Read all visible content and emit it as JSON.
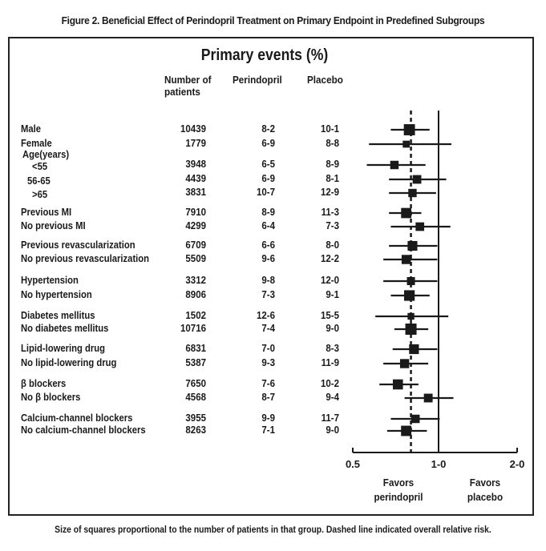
{
  "figure_title": "Figure 2. Beneficial Effect of Perindopril Treatment on Primary Endpoint in Predefined Subgroups",
  "footnote": "Size of squares proportional to the number of patients in that group. Dashed line indicated overall relative risk.",
  "chart_data": {
    "type": "forest",
    "title": "Primary events (%)",
    "columns": {
      "n": "Number of patients",
      "n_line1": "Number of",
      "n_line2": "patients",
      "perindopril": "Perindopril",
      "placebo": "Placebo"
    },
    "x_scale": "log",
    "xlim": [
      0.5,
      2.0
    ],
    "x_ticks": [
      0.5,
      1.0,
      2.0
    ],
    "x_tick_labels": [
      "0.5",
      "1-0",
      "2-0"
    ],
    "reference_line": 1.0,
    "overall_relative_risk": 0.8,
    "favors_left": [
      "Favors",
      "perindopril"
    ],
    "favors_right": [
      "Favors",
      "placebo"
    ],
    "rows": [
      {
        "label": "Male",
        "n": "10439",
        "perindopril": "8-2",
        "placebo": "10-1",
        "rr": 0.79,
        "lo": 0.68,
        "hi": 0.93
      },
      {
        "label": "Female",
        "n": "1779",
        "perindopril": "6-9",
        "placebo": "8-8",
        "rr": 0.77,
        "lo": 0.57,
        "hi": 1.12
      },
      {
        "label": "Age(years)",
        "header": true
      },
      {
        "label": "<55",
        "indent": true,
        "n": "3948",
        "perindopril": "6-5",
        "placebo": "8-9",
        "rr": 0.7,
        "lo": 0.56,
        "hi": 0.9
      },
      {
        "label": "56-65",
        "indent": true,
        "n": "4439",
        "perindopril": "6-9",
        "placebo": "8-1",
        "rr": 0.84,
        "lo": 0.67,
        "hi": 1.07
      },
      {
        "label": ">65",
        "indent": true,
        "n": "3831",
        "perindopril": "10-7",
        "placebo": "12-9",
        "rr": 0.81,
        "lo": 0.67,
        "hi": 0.98
      },
      {
        "label": "Previous MI",
        "n": "7910",
        "perindopril": "8-9",
        "placebo": "11-3",
        "rr": 0.77,
        "lo": 0.67,
        "hi": 0.87
      },
      {
        "label": "No previous MI",
        "n": "4299",
        "perindopril": "6-4",
        "placebo": "7-3",
        "rr": 0.86,
        "lo": 0.68,
        "hi": 1.11
      },
      {
        "label": "Previous revascularization",
        "n": "6709",
        "perindopril": "6-6",
        "placebo": "8-0",
        "rr": 0.81,
        "lo": 0.67,
        "hi": 0.99
      },
      {
        "label": "No previous revascularization",
        "n": "5509",
        "perindopril": "9-6",
        "placebo": "12-2",
        "rr": 0.77,
        "lo": 0.64,
        "hi": 0.99
      },
      {
        "label": "Hypertension",
        "n": "3312",
        "perindopril": "9-8",
        "placebo": "12-0",
        "rr": 0.8,
        "lo": 0.64,
        "hi": 0.99
      },
      {
        "label": "No hypertension",
        "n": "8906",
        "perindopril": "7-3",
        "placebo": "9-1",
        "rr": 0.79,
        "lo": 0.68,
        "hi": 0.93
      },
      {
        "label": "Diabetes mellitus",
        "n": "1502",
        "perindopril": "12-6",
        "placebo": "15-5",
        "rr": 0.8,
        "lo": 0.6,
        "hi": 1.09
      },
      {
        "label": "No diabetes mellitus",
        "n": "10716",
        "perindopril": "7-4",
        "placebo": "9-0",
        "rr": 0.8,
        "lo": 0.7,
        "hi": 0.92
      },
      {
        "label": "Lipid-lowering drug",
        "n": "6831",
        "perindopril": "7-0",
        "placebo": "8-3",
        "rr": 0.82,
        "lo": 0.69,
        "hi": 0.99
      },
      {
        "label": "No lipid-lowering drug",
        "n": "5387",
        "perindopril": "9-3",
        "placebo": "11-9",
        "rr": 0.76,
        "lo": 0.64,
        "hi": 0.92
      },
      {
        "label": "β   blockers",
        "n": "7650",
        "perindopril": "7-6",
        "placebo": "10-2",
        "rr": 0.72,
        "lo": 0.62,
        "hi": 0.85
      },
      {
        "label": "No β  blockers",
        "n": "4568",
        "perindopril": "8-7",
        "placebo": "9-4",
        "rr": 0.92,
        "lo": 0.76,
        "hi": 1.14
      },
      {
        "label": "Calcium-channel blockers",
        "n": "3955",
        "perindopril": "9-9",
        "placebo": "11-7",
        "rr": 0.83,
        "lo": 0.68,
        "hi": 1.01
      },
      {
        "label": "No calcium-channel blockers",
        "n": "8263",
        "perindopril": "7-1",
        "placebo": "9-0",
        "rr": 0.77,
        "lo": 0.66,
        "hi": 0.91
      }
    ]
  }
}
